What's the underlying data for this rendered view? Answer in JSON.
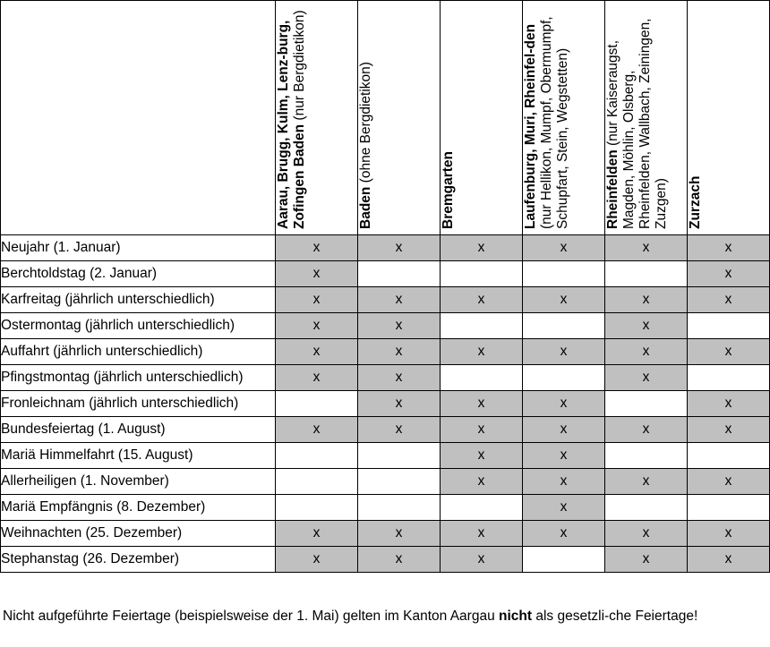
{
  "columns": [
    {
      "parts": [
        {
          "t": "Aarau, Brugg, Kulm, Lenz-burg, Zofingen",
          "b": true
        },
        {
          "t": " ",
          "b": false
        },
        {
          "t": "Baden",
          "b": true
        },
        {
          "t": " (nur Bergdietikon)",
          "b": false
        }
      ]
    },
    {
      "parts": [
        {
          "t": "Baden",
          "b": true
        },
        {
          "t": " (ohne Bergdietikon)",
          "b": false
        }
      ]
    },
    {
      "parts": [
        {
          "t": "Bremgarten",
          "b": true
        }
      ]
    },
    {
      "parts": [
        {
          "t": "Laufenburg, Muri, Rheinfel-den",
          "b": true
        },
        {
          "t": " (nur Hellikon, Mumpf, Obermumpf, Schupfart, Stein, Wegstetten)",
          "b": false
        }
      ]
    },
    {
      "parts": [
        {
          "t": "Rheinfelden",
          "b": true
        },
        {
          "t": " (nur Kaiseraugst, Magden, Möhlin, Olsberg, Rheinfelden, Wallbach, Zeiningen, Zuzgen)",
          "b": false
        }
      ]
    },
    {
      "parts": [
        {
          "t": "Zurzach",
          "b": true
        }
      ]
    }
  ],
  "rows": [
    {
      "label": "Neujahr (1. Januar)",
      "marks": [
        1,
        1,
        1,
        1,
        1,
        1
      ]
    },
    {
      "label": "Berchtoldstag (2. Januar)",
      "marks": [
        1,
        0,
        0,
        0,
        0,
        1
      ]
    },
    {
      "label": "Karfreitag (jährlich unterschiedlich)",
      "marks": [
        1,
        1,
        1,
        1,
        1,
        1
      ]
    },
    {
      "label": "Ostermontag (jährlich unterschiedlich)",
      "marks": [
        1,
        1,
        0,
        0,
        1,
        0
      ]
    },
    {
      "label": "Auffahrt (jährlich unterschiedlich)",
      "marks": [
        1,
        1,
        1,
        1,
        1,
        1
      ]
    },
    {
      "label": "Pfingstmontag (jährlich unterschiedlich)",
      "marks": [
        1,
        1,
        0,
        0,
        1,
        0
      ]
    },
    {
      "label": "Fronleichnam (jährlich unterschiedlich)",
      "marks": [
        0,
        1,
        1,
        1,
        0,
        1
      ]
    },
    {
      "label": "Bundesfeiertag (1. August)",
      "marks": [
        1,
        1,
        1,
        1,
        1,
        1
      ]
    },
    {
      "label": "Mariä Himmelfahrt (15. August)",
      "marks": [
        0,
        0,
        1,
        1,
        0,
        0
      ]
    },
    {
      "label": "Allerheiligen (1. November)",
      "marks": [
        0,
        0,
        1,
        1,
        1,
        1
      ]
    },
    {
      "label": "Mariä Empfängnis (8. Dezember)",
      "marks": [
        0,
        0,
        0,
        1,
        0,
        0
      ]
    },
    {
      "label": "Weihnachten (25. Dezember)",
      "marks": [
        1,
        1,
        1,
        1,
        1,
        1
      ]
    },
    {
      "label": "Stephanstag (26. Dezember)",
      "marks": [
        1,
        1,
        1,
        0,
        1,
        1
      ]
    }
  ],
  "mark_symbol": "x",
  "colors": {
    "marked_fill": "#c0c0c0",
    "border": "#000000"
  },
  "note": {
    "before": "Nicht aufgeführte Feiertage (beispielsweise der 1. Mai) gelten im Kanton Aargau ",
    "bold": "nicht",
    "after": " als gesetzli-che Feiertage!"
  }
}
